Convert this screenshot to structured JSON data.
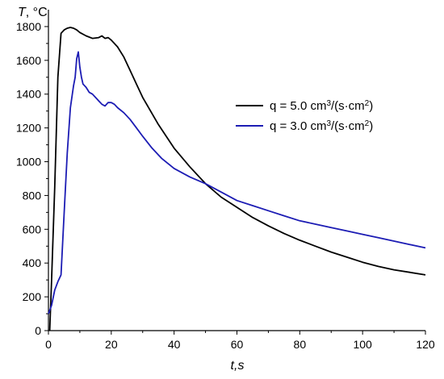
{
  "chart_data": {
    "type": "line",
    "xlabel_var": "t",
    "xlabel_unit": "s",
    "ylabel_var": "T",
    "ylabel_unit": "°C",
    "xlim": [
      0,
      120
    ],
    "ylim": [
      0,
      1900
    ],
    "xticks": [
      0,
      20,
      40,
      60,
      80,
      100,
      120
    ],
    "yticks": [
      0,
      200,
      400,
      600,
      800,
      1000,
      1200,
      1400,
      1600,
      1800
    ],
    "grid": false,
    "legend_position": "right",
    "series": [
      {
        "name_pre": "q = 5.0 cm",
        "name_sup1": "3",
        "name_mid": "/(s·cm",
        "name_sup2": "2",
        "name_post": ")",
        "color": "#000000",
        "x": [
          0.4,
          1,
          2,
          3,
          4,
          5,
          6,
          7,
          8,
          9,
          10,
          12,
          14,
          16,
          17,
          18,
          19,
          20,
          22,
          24,
          26,
          28,
          30,
          35,
          40,
          45,
          50,
          55,
          60,
          65,
          70,
          75,
          80,
          85,
          90,
          95,
          100,
          105,
          110,
          115,
          120
        ],
        "y": [
          0,
          300,
          850,
          1500,
          1760,
          1780,
          1790,
          1795,
          1790,
          1780,
          1765,
          1745,
          1730,
          1735,
          1745,
          1730,
          1735,
          1720,
          1680,
          1620,
          1540,
          1460,
          1380,
          1220,
          1080,
          970,
          870,
          790,
          730,
          670,
          620,
          575,
          535,
          500,
          465,
          435,
          405,
          380,
          360,
          345,
          330
        ]
      },
      {
        "name_pre": "q = 3.0 cm",
        "name_sup1": "3",
        "name_mid": "/(s·cm",
        "name_sup2": "2",
        "name_post": ")",
        "color": "#1c1cb4",
        "x": [
          0,
          1,
          2,
          3,
          4,
          5,
          6,
          7,
          8,
          8.5,
          9,
          9.5,
          10,
          10.5,
          11,
          12,
          13,
          14,
          15,
          16,
          17,
          18,
          19,
          20,
          21,
          22,
          24,
          26,
          28,
          30,
          33,
          36,
          40,
          45,
          50,
          55,
          60,
          65,
          70,
          75,
          80,
          85,
          90,
          95,
          100,
          105,
          110,
          115,
          120
        ],
        "y": [
          100,
          150,
          240,
          290,
          330,
          700,
          1050,
          1320,
          1450,
          1500,
          1610,
          1650,
          1560,
          1500,
          1460,
          1440,
          1410,
          1400,
          1380,
          1360,
          1340,
          1330,
          1350,
          1350,
          1340,
          1320,
          1290,
          1250,
          1200,
          1150,
          1080,
          1020,
          960,
          910,
          870,
          820,
          770,
          740,
          710,
          680,
          650,
          630,
          610,
          590,
          570,
          550,
          530,
          510,
          490
        ]
      }
    ]
  }
}
